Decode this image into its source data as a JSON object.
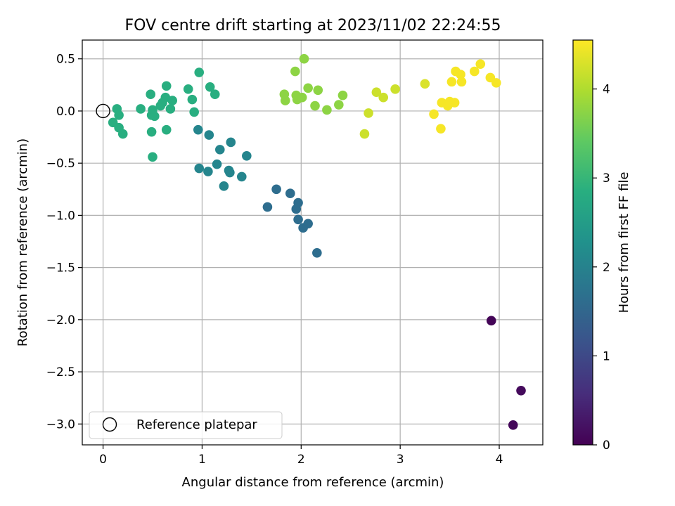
{
  "chart_data": {
    "type": "scatter",
    "title": "FOV centre drift starting at 2023/11/02 22:24:55",
    "xlabel": "Angular distance from reference (arcmin)",
    "ylabel": "Rotation from reference (arcmin)",
    "xlim": [
      -0.21,
      4.44
    ],
    "ylim": [
      -3.2,
      0.68
    ],
    "xticks": [
      0,
      1,
      2,
      3,
      4
    ],
    "xtick_labels": [
      "0",
      "1",
      "2",
      "3",
      "4"
    ],
    "yticks": [
      0.5,
      0.0,
      -0.5,
      -1.0,
      -1.5,
      -2.0,
      -2.5,
      -3.0
    ],
    "ytick_labels": [
      "0.5",
      "0.0",
      "−0.5",
      "−1.0",
      "−1.5",
      "−2.0",
      "−2.5",
      "−3.0"
    ],
    "grid": true,
    "colormap": "viridis",
    "colorbar": {
      "label": "Hours from first FF file",
      "range": [
        0,
        4.55
      ],
      "ticks": [
        0,
        1,
        2,
        3,
        4
      ],
      "tick_labels": [
        "0",
        "1",
        "2",
        "3",
        "4"
      ]
    },
    "legend": {
      "placement": "lower-left",
      "entries": [
        {
          "label": "Reference platepar",
          "marker": "open-circle",
          "color": "#000000"
        }
      ]
    },
    "reference_point": {
      "x": 0,
      "y": 0
    },
    "series": [
      {
        "points": [
          {
            "x": 3.92,
            "y": -2.01,
            "c": 0.05
          },
          {
            "x": 4.14,
            "y": -3.01,
            "c": 0.08
          },
          {
            "x": 4.22,
            "y": -2.68,
            "c": 0.11
          },
          {
            "x": 1.66,
            "y": -0.92,
            "c": 1.62
          },
          {
            "x": 1.75,
            "y": -0.75,
            "c": 1.62
          },
          {
            "x": 1.89,
            "y": -0.79,
            "c": 1.62
          },
          {
            "x": 1.95,
            "y": -0.94,
            "c": 1.62
          },
          {
            "x": 1.97,
            "y": -0.88,
            "c": 1.62
          },
          {
            "x": 1.97,
            "y": -1.04,
            "c": 1.62
          },
          {
            "x": 2.02,
            "y": -1.12,
            "c": 1.62
          },
          {
            "x": 2.07,
            "y": -1.08,
            "c": 1.62
          },
          {
            "x": 2.16,
            "y": -1.36,
            "c": 1.62
          },
          {
            "x": 0.96,
            "y": -0.18,
            "c": 2.05
          },
          {
            "x": 1.07,
            "y": -0.23,
            "c": 2.05
          },
          {
            "x": 1.18,
            "y": -0.37,
            "c": 2.05
          },
          {
            "x": 1.29,
            "y": -0.3,
            "c": 2.05
          },
          {
            "x": 1.45,
            "y": -0.43,
            "c": 2.05
          },
          {
            "x": 0.97,
            "y": -0.55,
            "c": 2.05
          },
          {
            "x": 1.06,
            "y": -0.58,
            "c": 2.05
          },
          {
            "x": 1.15,
            "y": -0.51,
            "c": 2.05
          },
          {
            "x": 1.27,
            "y": -0.57,
            "c": 2.05
          },
          {
            "x": 1.28,
            "y": -0.59,
            "c": 2.05
          },
          {
            "x": 1.4,
            "y": -0.63,
            "c": 2.05
          },
          {
            "x": 1.22,
            "y": -0.72,
            "c": 2.05
          },
          {
            "x": 0.1,
            "y": -0.11,
            "c": 2.85
          },
          {
            "x": 0.14,
            "y": 0.02,
            "c": 2.85
          },
          {
            "x": 0.16,
            "y": -0.04,
            "c": 2.85
          },
          {
            "x": 0.16,
            "y": -0.16,
            "c": 2.85
          },
          {
            "x": 0.2,
            "y": -0.22,
            "c": 2.85
          },
          {
            "x": 0.38,
            "y": 0.02,
            "c": 2.85
          },
          {
            "x": 0.48,
            "y": 0.16,
            "c": 2.85
          },
          {
            "x": 0.49,
            "y": -0.04,
            "c": 2.85
          },
          {
            "x": 0.5,
            "y": 0.01,
            "c": 2.85
          },
          {
            "x": 0.52,
            "y": -0.05,
            "c": 2.85
          },
          {
            "x": 0.49,
            "y": -0.2,
            "c": 2.85
          },
          {
            "x": 0.5,
            "y": -0.44,
            "c": 2.85
          },
          {
            "x": 0.58,
            "y": 0.05,
            "c": 2.85
          },
          {
            "x": 0.6,
            "y": 0.08,
            "c": 2.85
          },
          {
            "x": 0.63,
            "y": 0.13,
            "c": 2.85
          },
          {
            "x": 0.64,
            "y": 0.24,
            "c": 2.85
          },
          {
            "x": 0.64,
            "y": -0.18,
            "c": 2.85
          },
          {
            "x": 0.68,
            "y": 0.02,
            "c": 2.85
          },
          {
            "x": 0.7,
            "y": 0.1,
            "c": 2.85
          },
          {
            "x": 0.86,
            "y": 0.21,
            "c": 2.85
          },
          {
            "x": 0.9,
            "y": 0.11,
            "c": 2.85
          },
          {
            "x": 0.92,
            "y": -0.01,
            "c": 2.85
          },
          {
            "x": 0.97,
            "y": 0.37,
            "c": 2.85
          },
          {
            "x": 1.08,
            "y": 0.23,
            "c": 2.85
          },
          {
            "x": 1.13,
            "y": 0.16,
            "c": 2.85
          },
          {
            "x": 1.83,
            "y": 0.16,
            "c": 3.75
          },
          {
            "x": 1.84,
            "y": 0.1,
            "c": 3.75
          },
          {
            "x": 1.94,
            "y": 0.38,
            "c": 3.75
          },
          {
            "x": 1.95,
            "y": 0.15,
            "c": 3.75
          },
          {
            "x": 1.96,
            "y": 0.11,
            "c": 3.75
          },
          {
            "x": 2.01,
            "y": 0.13,
            "c": 3.75
          },
          {
            "x": 2.03,
            "y": 0.5,
            "c": 3.75
          },
          {
            "x": 2.07,
            "y": 0.22,
            "c": 3.75
          },
          {
            "x": 2.14,
            "y": 0.05,
            "c": 3.75
          },
          {
            "x": 2.17,
            "y": 0.2,
            "c": 3.75
          },
          {
            "x": 2.26,
            "y": 0.01,
            "c": 3.75
          },
          {
            "x": 2.38,
            "y": 0.06,
            "c": 3.75
          },
          {
            "x": 2.42,
            "y": 0.15,
            "c": 3.75
          },
          {
            "x": 2.64,
            "y": -0.22,
            "c": 4.2
          },
          {
            "x": 2.68,
            "y": -0.02,
            "c": 4.2
          },
          {
            "x": 2.76,
            "y": 0.18,
            "c": 4.2
          },
          {
            "x": 2.83,
            "y": 0.13,
            "c": 4.2
          },
          {
            "x": 2.95,
            "y": 0.21,
            "c": 4.2
          },
          {
            "x": 3.25,
            "y": 0.26,
            "c": 4.3
          },
          {
            "x": 3.34,
            "y": -0.03,
            "c": 4.5
          },
          {
            "x": 3.41,
            "y": -0.17,
            "c": 4.5
          },
          {
            "x": 3.42,
            "y": 0.08,
            "c": 4.5
          },
          {
            "x": 3.48,
            "y": 0.05,
            "c": 4.5
          },
          {
            "x": 3.5,
            "y": 0.09,
            "c": 4.5
          },
          {
            "x": 3.52,
            "y": 0.28,
            "c": 4.5
          },
          {
            "x": 3.55,
            "y": 0.08,
            "c": 4.5
          },
          {
            "x": 3.56,
            "y": 0.38,
            "c": 4.5
          },
          {
            "x": 3.61,
            "y": 0.35,
            "c": 4.5
          },
          {
            "x": 3.62,
            "y": 0.28,
            "c": 4.5
          },
          {
            "x": 3.75,
            "y": 0.38,
            "c": 4.5
          },
          {
            "x": 3.81,
            "y": 0.45,
            "c": 4.5
          },
          {
            "x": 3.91,
            "y": 0.32,
            "c": 4.5
          },
          {
            "x": 3.97,
            "y": 0.27,
            "c": 4.5
          }
        ]
      }
    ]
  }
}
